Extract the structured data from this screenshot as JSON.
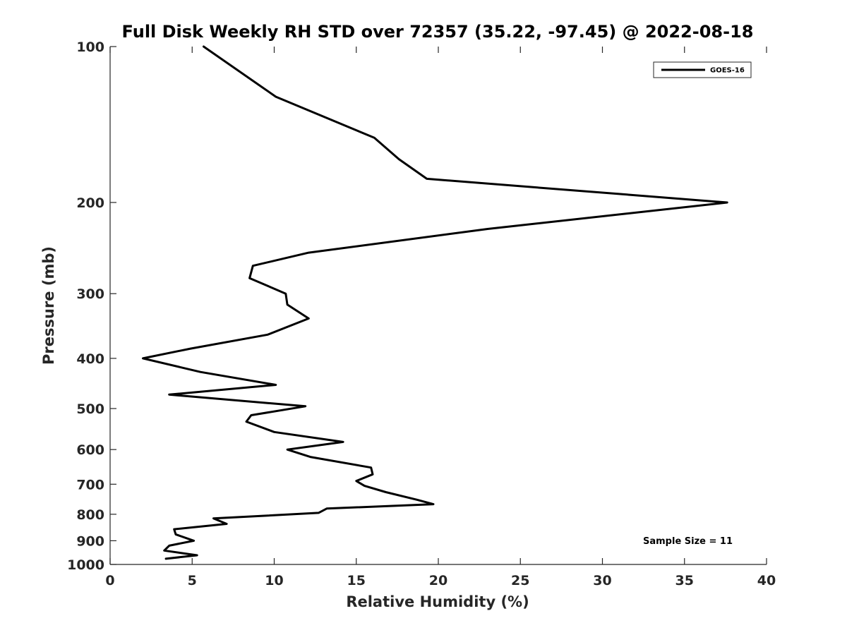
{
  "chart_data": {
    "type": "line",
    "title": "Full Disk Weekly RH STD over 72357 (35.22, -97.45) @ 2022-08-18",
    "xlabel": "Relative Humidity (%)",
    "ylabel": "Pressure (mb)",
    "xlim": [
      0,
      40
    ],
    "ylim": [
      100,
      1000
    ],
    "y_scale": "log",
    "y_inverted": true,
    "grid": false,
    "x_ticks": [
      0,
      5,
      10,
      15,
      20,
      25,
      30,
      35,
      40
    ],
    "x_tick_labels": [
      "0",
      "5",
      "10",
      "15",
      "20",
      "25",
      "30",
      "35",
      "40"
    ],
    "y_ticks": [
      100,
      200,
      300,
      400,
      500,
      600,
      700,
      800,
      900,
      1000
    ],
    "y_tick_labels": [
      "100",
      "200",
      "300",
      "400",
      "500",
      "600",
      "700",
      "800",
      "900",
      "1000"
    ],
    "legend_position": "top-right",
    "series": [
      {
        "name": "GOES-16",
        "color": "#000000",
        "x": [
          5.7,
          10.1,
          16.1,
          17.6,
          19.3,
          37.6,
          23.0,
          12.1,
          8.7,
          8.5,
          10.7,
          10.8,
          12.1,
          9.6,
          4.9,
          2.0,
          5.5,
          10.1,
          3.6,
          11.9,
          8.6,
          8.3,
          10.0,
          14.2,
          10.8,
          12.2,
          15.9,
          16.0,
          15.0,
          15.5,
          16.8,
          18.7,
          19.7,
          13.2,
          12.7,
          6.3,
          7.1,
          3.9,
          4.0,
          5.1,
          3.6,
          3.3,
          5.3,
          3.4
        ],
        "y": [
          100,
          125,
          150,
          165,
          180,
          200,
          225,
          250,
          265,
          280,
          300,
          315,
          335,
          360,
          383,
          400,
          425,
          450,
          470,
          495,
          515,
          530,
          555,
          580,
          600,
          620,
          650,
          670,
          690,
          705,
          725,
          750,
          765,
          780,
          795,
          815,
          835,
          855,
          875,
          900,
          920,
          940,
          960,
          975
        ]
      }
    ],
    "legend": [
      {
        "label": "GOES-16",
        "color": "#000000"
      }
    ],
    "annotations": [
      {
        "text": "Sample Size = 11",
        "x": 35,
        "y": 900
      }
    ]
  }
}
